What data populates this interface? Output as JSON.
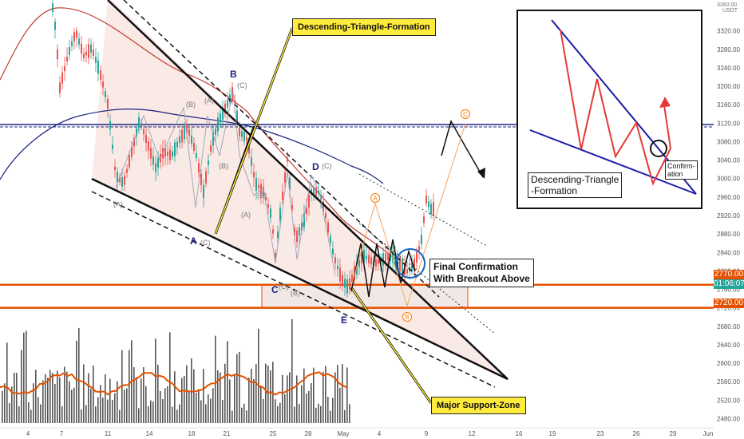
{
  "chart_data": {
    "type": "line",
    "title": "",
    "currency": "USDT",
    "top_price_label": "3360.00",
    "y_axis_ticks": [
      "3320.00",
      "3280.00",
      "3240.00",
      "3200.00",
      "3160.00",
      "3120.00",
      "3080.00",
      "3040.00",
      "3000.00",
      "2960.00",
      "2920.00",
      "2880.00",
      "2840.00",
      "2800.00",
      "2760.00",
      "2720.00",
      "2680.00",
      "2640.00",
      "2600.00",
      "2560.00",
      "2520.00",
      "2480.00"
    ],
    "ylim": [
      2460,
      3380
    ],
    "x_axis_ticks": [
      "4",
      "7",
      "11",
      "14",
      "18",
      "21",
      "25",
      "28",
      "May",
      "4",
      "9",
      "12",
      "16",
      "19",
      "23",
      "26",
      "29",
      "Jun"
    ],
    "price_tags": {
      "upper_level": "2770.00",
      "current_price": "2782.00",
      "countdown": "01:06:07",
      "lower_level": "2720.00"
    },
    "colors": {
      "upper_level": "#e65100",
      "current_price": "#26a69a",
      "lower_level": "#e65100",
      "horizontal_resistance": "#1a237e",
      "callout": "#ffeb3b"
    },
    "annotations": {
      "descending_triangle": "Descending-Triangle-Formation",
      "final_confirmation_line1": "Final Confirmation",
      "final_confirmation_line2": "With Breakout Above",
      "support_zone": "Major Support-Zone"
    },
    "wave_labels": {
      "A": "A",
      "B": "B",
      "C": "C",
      "D": "D",
      "E": "E",
      "sub_A": "(A)",
      "sub_B": "(B)",
      "sub_C": "(C)",
      "orange_A": "A",
      "orange_B": "B",
      "orange_C": "C"
    },
    "inset": {
      "title_line1": "Descending-Triangle",
      "title_line2": "-Formation",
      "confirm_line1": "Confirm-",
      "confirm_line2": "ation"
    }
  }
}
